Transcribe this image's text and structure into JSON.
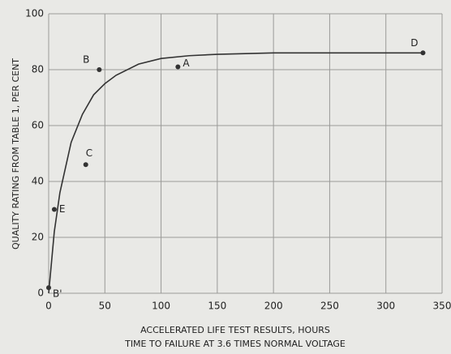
{
  "chart_data": {
    "type": "scatter",
    "ylabel": "QUALITY RATING FROM TABLE 1, PER CENT",
    "xlabel": [
      "ACCELERATED LIFE TEST RESULTS, HOURS",
      "TIME TO FAILURE AT 3.6 TIMES NORMAL VOLTAGE"
    ],
    "xlim": [
      0,
      350
    ],
    "xticks": [
      0,
      50,
      100,
      150,
      200,
      250,
      300,
      350
    ],
    "ylim": [
      0,
      100
    ],
    "yticks": [
      0,
      20,
      40,
      60,
      80,
      100
    ],
    "grid": true,
    "series": [
      {
        "type": "scatter",
        "color": "#333333",
        "x": [
          0,
          5,
          33,
          45,
          115,
          333
        ],
        "values": [
          2,
          30,
          46,
          80,
          81,
          86
        ],
        "labels": [
          "B'",
          "E",
          "C",
          "B",
          "A",
          "D"
        ]
      },
      {
        "type": "line",
        "color": "#333333",
        "x": [
          0,
          5,
          10,
          20,
          30,
          40,
          50,
          60,
          80,
          100,
          125,
          150,
          200,
          250,
          300,
          335
        ],
        "values": [
          0,
          22,
          36,
          54,
          64,
          71,
          75,
          78,
          82,
          84,
          85,
          85.5,
          86,
          86,
          86,
          86
        ]
      }
    ]
  }
}
